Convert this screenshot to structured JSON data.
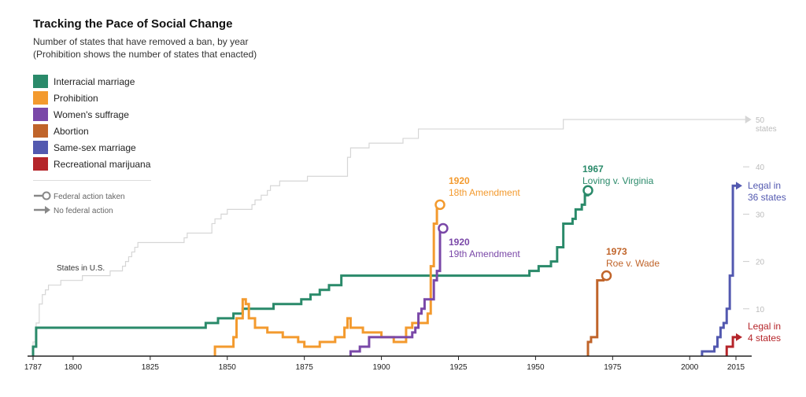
{
  "title": "Tracking the Pace of Social Change",
  "subtitle_1": "Number of states that have removed a ban, by year",
  "subtitle_2": "(Prohibition shows the number of states that enacted)",
  "legend": [
    {
      "label": "Interracial marriage",
      "color": "#2a8a6a"
    },
    {
      "label": "Prohibition",
      "color": "#f39a2e"
    },
    {
      "label": "Women's suffrage",
      "color": "#7a48a8"
    },
    {
      "label": "Abortion",
      "color": "#c0642a"
    },
    {
      "label": "Same-sex marriage",
      "color": "#5359b0"
    },
    {
      "label": "Recreational marijuana",
      "color": "#b5252a"
    }
  ],
  "marker_legend": {
    "federal": "Federal action taken",
    "none": "No federal action"
  },
  "states_label": "States in U.S.",
  "chart_data": {
    "type": "line",
    "title": "Tracking the Pace of Social Change",
    "xlabel": "",
    "ylabel": "",
    "xlim": [
      1787,
      2018
    ],
    "ylim": [
      0,
      51
    ],
    "x_ticks": [
      1787,
      1800,
      1825,
      1850,
      1875,
      1900,
      1925,
      1950,
      1975,
      2000,
      2015
    ],
    "y_ticks": [
      10,
      20,
      30,
      40,
      50
    ],
    "y_tick_labels": [
      "10",
      "20",
      "30",
      "40",
      "50"
    ],
    "y_top_unit": "states",
    "grid": false,
    "legend_position": "top-left",
    "series": [
      {
        "name": "States in U.S.",
        "color": "#d6d6d6",
        "end": "none",
        "points": [
          [
            1787,
            0
          ],
          [
            1787,
            3
          ],
          [
            1788,
            7
          ],
          [
            1789,
            11
          ],
          [
            1790,
            13
          ],
          [
            1791,
            14
          ],
          [
            1792,
            15
          ],
          [
            1796,
            16
          ],
          [
            1803,
            17
          ],
          [
            1812,
            18
          ],
          [
            1816,
            19
          ],
          [
            1817,
            20
          ],
          [
            1818,
            21
          ],
          [
            1819,
            22
          ],
          [
            1820,
            23
          ],
          [
            1821,
            24
          ],
          [
            1836,
            25
          ],
          [
            1837,
            26
          ],
          [
            1845,
            28
          ],
          [
            1846,
            29
          ],
          [
            1848,
            30
          ],
          [
            1850,
            31
          ],
          [
            1858,
            32
          ],
          [
            1859,
            33
          ],
          [
            1861,
            34
          ],
          [
            1863,
            35
          ],
          [
            1864,
            36
          ],
          [
            1867,
            37
          ],
          [
            1876,
            38
          ],
          [
            1889,
            42
          ],
          [
            1890,
            44
          ],
          [
            1896,
            45
          ],
          [
            1907,
            46
          ],
          [
            1912,
            48
          ],
          [
            1959,
            50
          ],
          [
            2018,
            50
          ]
        ]
      },
      {
        "name": "Interracial marriage",
        "color": "#2a8a6a",
        "end": "federal",
        "end_year": "1967",
        "end_text": "Loving v. Virginia",
        "points": [
          [
            1787,
            0
          ],
          [
            1787,
            2
          ],
          [
            1788,
            6
          ],
          [
            1790,
            6
          ],
          [
            1790,
            6
          ],
          [
            1843,
            6
          ],
          [
            1843,
            7
          ],
          [
            1847,
            8
          ],
          [
            1852,
            9
          ],
          [
            1855,
            10
          ],
          [
            1865,
            11
          ],
          [
            1874,
            12
          ],
          [
            1877,
            13
          ],
          [
            1880,
            14
          ],
          [
            1883,
            15
          ],
          [
            1887,
            17
          ],
          [
            1948,
            17
          ],
          [
            1948,
            18
          ],
          [
            1951,
            19
          ],
          [
            1953,
            19
          ],
          [
            1955,
            20
          ],
          [
            1957,
            23
          ],
          [
            1959,
            28
          ],
          [
            1962,
            29
          ],
          [
            1963,
            31
          ],
          [
            1965,
            32
          ],
          [
            1966,
            34
          ],
          [
            1967,
            35
          ]
        ]
      },
      {
        "name": "Prohibition",
        "color": "#f39a2e",
        "end": "federal",
        "end_year": "1920",
        "end_text": "18th Amendment",
        "points": [
          [
            1846,
            0
          ],
          [
            1846,
            2
          ],
          [
            1851,
            2
          ],
          [
            1852,
            4
          ],
          [
            1853,
            8
          ],
          [
            1854,
            8
          ],
          [
            1855,
            12
          ],
          [
            1856,
            11
          ],
          [
            1857,
            8
          ],
          [
            1859,
            6
          ],
          [
            1863,
            5
          ],
          [
            1868,
            4
          ],
          [
            1873,
            3
          ],
          [
            1875,
            2
          ],
          [
            1880,
            3
          ],
          [
            1885,
            4
          ],
          [
            1888,
            6
          ],
          [
            1889,
            8
          ],
          [
            1890,
            6
          ],
          [
            1894,
            5
          ],
          [
            1900,
            4
          ],
          [
            1904,
            3
          ],
          [
            1907,
            3
          ],
          [
            1908,
            6
          ],
          [
            1910,
            7
          ],
          [
            1915,
            9
          ],
          [
            1916,
            19
          ],
          [
            1917,
            28
          ],
          [
            1918,
            32
          ],
          [
            1919,
            32
          ]
        ]
      },
      {
        "name": "Women's suffrage",
        "color": "#7a48a8",
        "end": "federal",
        "end_year": "1920",
        "end_text": "19th Amendment",
        "points": [
          [
            1890,
            0
          ],
          [
            1890,
            1
          ],
          [
            1893,
            2
          ],
          [
            1896,
            4
          ],
          [
            1910,
            5
          ],
          [
            1911,
            6
          ],
          [
            1912,
            9
          ],
          [
            1913,
            10
          ],
          [
            1914,
            12
          ],
          [
            1917,
            16
          ],
          [
            1918,
            18
          ],
          [
            1919,
            27
          ],
          [
            1920,
            27
          ]
        ]
      },
      {
        "name": "Abortion",
        "color": "#c0642a",
        "end": "federal",
        "end_year": "1973",
        "end_text": "Roe v. Wade",
        "points": [
          [
            1967,
            0
          ],
          [
            1967,
            3
          ],
          [
            1968,
            4
          ],
          [
            1970,
            10
          ],
          [
            1970,
            16
          ],
          [
            1972,
            17
          ],
          [
            1973,
            17
          ]
        ]
      },
      {
        "name": "Same-sex marriage",
        "color": "#5359b0",
        "end": "none",
        "end_text": "Legal in 36 states",
        "points": [
          [
            2004,
            0
          ],
          [
            2004,
            1
          ],
          [
            2008,
            2
          ],
          [
            2009,
            4
          ],
          [
            2010,
            6
          ],
          [
            2011,
            7
          ],
          [
            2012,
            10
          ],
          [
            2013,
            17
          ],
          [
            2014,
            36
          ],
          [
            2015,
            36
          ]
        ]
      },
      {
        "name": "Recreational marijuana",
        "color": "#b5252a",
        "end": "none",
        "end_text": "Legal in 4 states",
        "points": [
          [
            2012,
            0
          ],
          [
            2012,
            2
          ],
          [
            2014,
            4
          ],
          [
            2015,
            4
          ]
        ]
      }
    ]
  }
}
